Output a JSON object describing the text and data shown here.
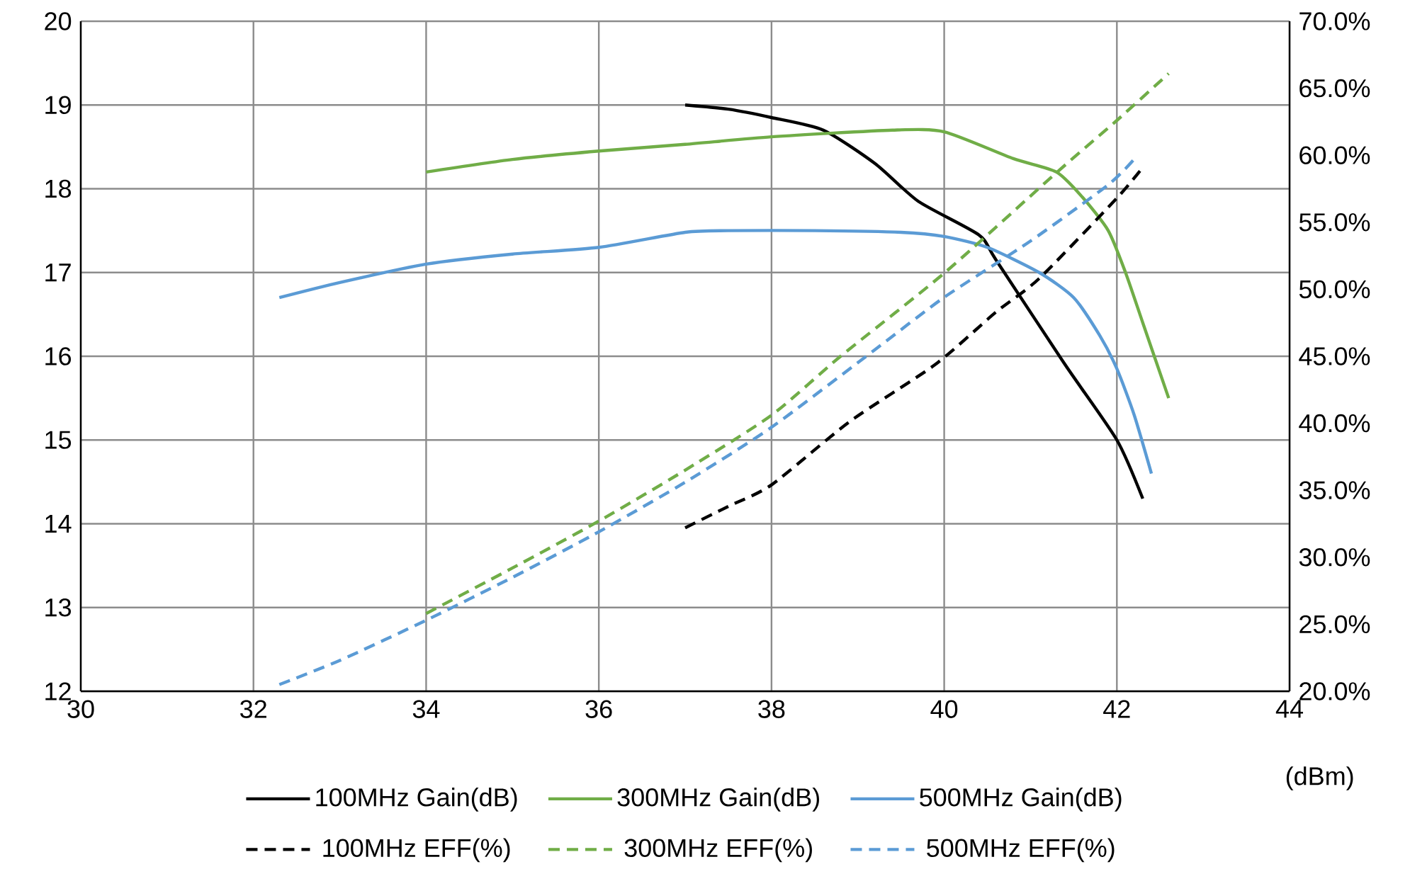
{
  "chart_data": {
    "type": "line",
    "xlabel": "(dBm)",
    "xlim": [
      30,
      44
    ],
    "xticks": [
      30,
      32,
      34,
      36,
      38,
      40,
      42,
      44
    ],
    "ylim": [
      12,
      20
    ],
    "yticks": [
      12,
      13,
      14,
      15,
      16,
      17,
      18,
      19,
      20
    ],
    "y2lim": [
      20,
      70
    ],
    "y2ticks": [
      {
        "value": 20,
        "label": "20.0%"
      },
      {
        "value": 25,
        "label": "25.0%"
      },
      {
        "value": 30,
        "label": "30.0%"
      },
      {
        "value": 35,
        "label": "35.0%"
      },
      {
        "value": 40,
        "label": "40.0%"
      },
      {
        "value": 45,
        "label": "45.0%"
      },
      {
        "value": 50,
        "label": "50.0%"
      },
      {
        "value": 55,
        "label": "55.0%"
      },
      {
        "value": 60,
        "label": "60.0%"
      },
      {
        "value": 65,
        "label": "65.0%"
      },
      {
        "value": 70,
        "label": "70.0%"
      }
    ],
    "grid": true,
    "legend": "bottom",
    "series": [
      {
        "name": "100MHz Gain(dB)",
        "color": "#000000",
        "axis": "y",
        "line_style": "solid",
        "x": [
          37,
          37.5,
          38,
          38.6,
          39.2,
          39.7,
          40.4,
          40.6,
          41.4,
          42.0,
          42.3
        ],
        "values": [
          19.0,
          18.95,
          18.85,
          18.7,
          18.3,
          17.85,
          17.45,
          17.15,
          15.9,
          15.0,
          14.3
        ]
      },
      {
        "name": "300MHz Gain(dB)",
        "color": "#70ad47",
        "axis": "y",
        "line_style": "solid",
        "x": [
          34,
          35,
          36,
          37,
          38,
          39.4,
          40,
          40.8,
          41.3,
          41.6,
          41.9,
          42.1,
          42.3,
          42.6
        ],
        "values": [
          18.2,
          18.35,
          18.45,
          18.53,
          18.62,
          18.7,
          18.68,
          18.36,
          18.2,
          17.9,
          17.5,
          17.0,
          16.4,
          15.5
        ]
      },
      {
        "name": "500MHz Gain(dB)",
        "color": "#5b9bd5",
        "axis": "y",
        "line_style": "solid",
        "x": [
          32.3,
          33,
          34,
          35,
          36,
          37,
          37.5,
          38.5,
          39.5,
          40,
          40.5,
          41.1,
          41.5,
          41.8,
          42,
          42.2,
          42.4
        ],
        "values": [
          16.7,
          16.88,
          17.1,
          17.22,
          17.3,
          17.48,
          17.5,
          17.5,
          17.48,
          17.43,
          17.3,
          17.0,
          16.7,
          16.25,
          15.85,
          15.3,
          14.6
        ]
      },
      {
        "name": "100MHz EFF(%)",
        "color": "#000000",
        "axis": "y2",
        "line_style": "dashed",
        "x": [
          37,
          37.5,
          38,
          38.9,
          39.9,
          40.6,
          41.1,
          42.0,
          42.3
        ],
        "values": [
          32.2,
          33.8,
          35.4,
          40.1,
          44.4,
          48.3,
          50.8,
          56.8,
          59.1
        ]
      },
      {
        "name": "300MHz EFF(%)",
        "color": "#70ad47",
        "axis": "y2",
        "line_style": "dashed",
        "x": [
          34,
          35,
          36,
          37,
          38,
          38.8,
          40,
          41.3,
          42,
          42.6
        ],
        "values": [
          25.8,
          29.2,
          32.7,
          36.5,
          40.6,
          45.0,
          51.2,
          58.7,
          62.6,
          66.1
        ]
      },
      {
        "name": "500MHz EFF(%)",
        "color": "#5b9bd5",
        "axis": "y2",
        "line_style": "dashed",
        "x": [
          32.3,
          33,
          34,
          35,
          36,
          37,
          38,
          39.2,
          40,
          41,
          41.9,
          42.2
        ],
        "values": [
          20.5,
          22.3,
          25.3,
          28.5,
          31.9,
          35.6,
          39.7,
          45.5,
          49.4,
          53.6,
          57.8,
          59.7
        ]
      }
    ]
  }
}
